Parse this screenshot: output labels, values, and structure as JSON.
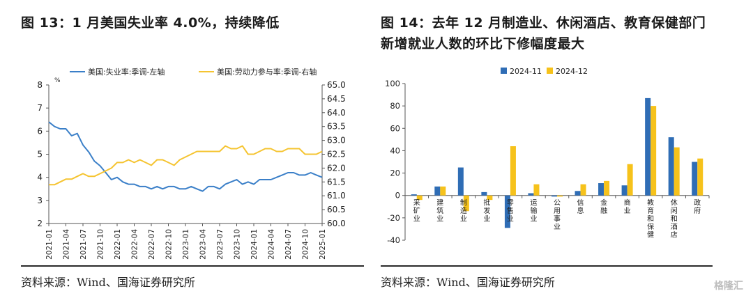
{
  "left": {
    "title": "图 13：1 月美国失业率 4.0%，持续降低",
    "source": "资料来源：Wind、国海证券研究所",
    "chart_data": {
      "type": "line",
      "unit_label": "%",
      "legend_position": "top",
      "grid": false,
      "x": [
        "2021-01",
        "2021-02",
        "2021-03",
        "2021-04",
        "2021-05",
        "2021-06",
        "2021-07",
        "2021-08",
        "2021-09",
        "2021-10",
        "2021-11",
        "2021-12",
        "2022-01",
        "2022-02",
        "2022-03",
        "2022-04",
        "2022-05",
        "2022-06",
        "2022-07",
        "2022-08",
        "2022-09",
        "2022-10",
        "2022-11",
        "2022-12",
        "2023-01",
        "2023-02",
        "2023-03",
        "2023-04",
        "2023-05",
        "2023-06",
        "2023-07",
        "2023-08",
        "2023-09",
        "2023-10",
        "2023-11",
        "2023-12",
        "2024-01",
        "2024-02",
        "2024-03",
        "2024-04",
        "2024-05",
        "2024-06",
        "2024-07",
        "2024-08",
        "2024-09",
        "2024-10",
        "2024-11",
        "2024-12",
        "2025-01"
      ],
      "x_ticks": [
        "2021-01",
        "2021-04",
        "2021-07",
        "2021-10",
        "2022-01",
        "2022-04",
        "2022-07",
        "2022-10",
        "2023-01",
        "2023-04",
        "2023-07",
        "2023-10",
        "2024-01",
        "2024-04",
        "2024-07",
        "2024-10",
        "2025-01"
      ],
      "y_left_ticks": [
        2,
        3,
        4,
        5,
        6,
        7,
        8
      ],
      "y_right_ticks": [
        60.0,
        60.5,
        61.0,
        61.5,
        62.0,
        62.5,
        63.0,
        63.5,
        64.0,
        64.5,
        65.0
      ],
      "ylim_left": [
        2,
        8
      ],
      "ylim_right": [
        60.0,
        65.0
      ],
      "series": [
        {
          "name": "美国:失业率:季调-左轴",
          "axis": "left",
          "color": "#3a7fc8",
          "values": [
            6.4,
            6.2,
            6.1,
            6.1,
            5.8,
            5.9,
            5.4,
            5.1,
            4.7,
            4.5,
            4.2,
            3.9,
            4.0,
            3.8,
            3.7,
            3.7,
            3.6,
            3.6,
            3.5,
            3.6,
            3.5,
            3.6,
            3.6,
            3.5,
            3.5,
            3.6,
            3.5,
            3.4,
            3.6,
            3.6,
            3.5,
            3.7,
            3.8,
            3.9,
            3.7,
            3.8,
            3.7,
            3.9,
            3.9,
            3.9,
            4.0,
            4.1,
            4.2,
            4.2,
            4.1,
            4.1,
            4.2,
            4.1,
            4.0
          ]
        },
        {
          "name": "美国:劳动力参与率:季调-右轴",
          "axis": "right",
          "color": "#f5c431",
          "values": [
            61.4,
            61.4,
            61.5,
            61.6,
            61.6,
            61.7,
            61.8,
            61.7,
            61.7,
            61.8,
            61.9,
            62.0,
            62.2,
            62.2,
            62.3,
            62.2,
            62.3,
            62.2,
            62.1,
            62.3,
            62.3,
            62.2,
            62.1,
            62.3,
            62.4,
            62.5,
            62.6,
            62.6,
            62.6,
            62.6,
            62.6,
            62.8,
            62.7,
            62.7,
            62.8,
            62.5,
            62.5,
            62.6,
            62.7,
            62.7,
            62.6,
            62.6,
            62.7,
            62.7,
            62.7,
            62.5,
            62.5,
            62.5,
            62.6
          ]
        }
      ]
    }
  },
  "right": {
    "title": "图 14：去年 12 月制造业、休闲酒店、教育保健部门新增就业人数的环比下修幅度最大",
    "source": "资料来源：Wind、国海证券研究所",
    "chart_data": {
      "type": "bar",
      "legend_position": "top-left",
      "grid": false,
      "categories": [
        "采矿业",
        "建筑业",
        "制造业",
        "批发业",
        "零售业",
        "运输业",
        "公用事业",
        "信息",
        "金融",
        "商业",
        "教育和保健",
        "休闲和酒店",
        "政府"
      ],
      "y_ticks": [
        -40,
        -20,
        0,
        20,
        40,
        60,
        80,
        100
      ],
      "ylim": [
        -40,
        100
      ],
      "series": [
        {
          "name": "2024-11",
          "color": "#2f6db5",
          "values": [
            1,
            8,
            25,
            3,
            -29,
            2,
            -1,
            4,
            11,
            9,
            87,
            52,
            30
          ]
        },
        {
          "name": "2024-12",
          "color": "#f6c21b",
          "values": [
            -4,
            8,
            -14,
            -4,
            44,
            10,
            -1,
            10,
            13,
            28,
            80,
            43,
            33
          ]
        }
      ]
    }
  },
  "watermark": "格隆汇"
}
